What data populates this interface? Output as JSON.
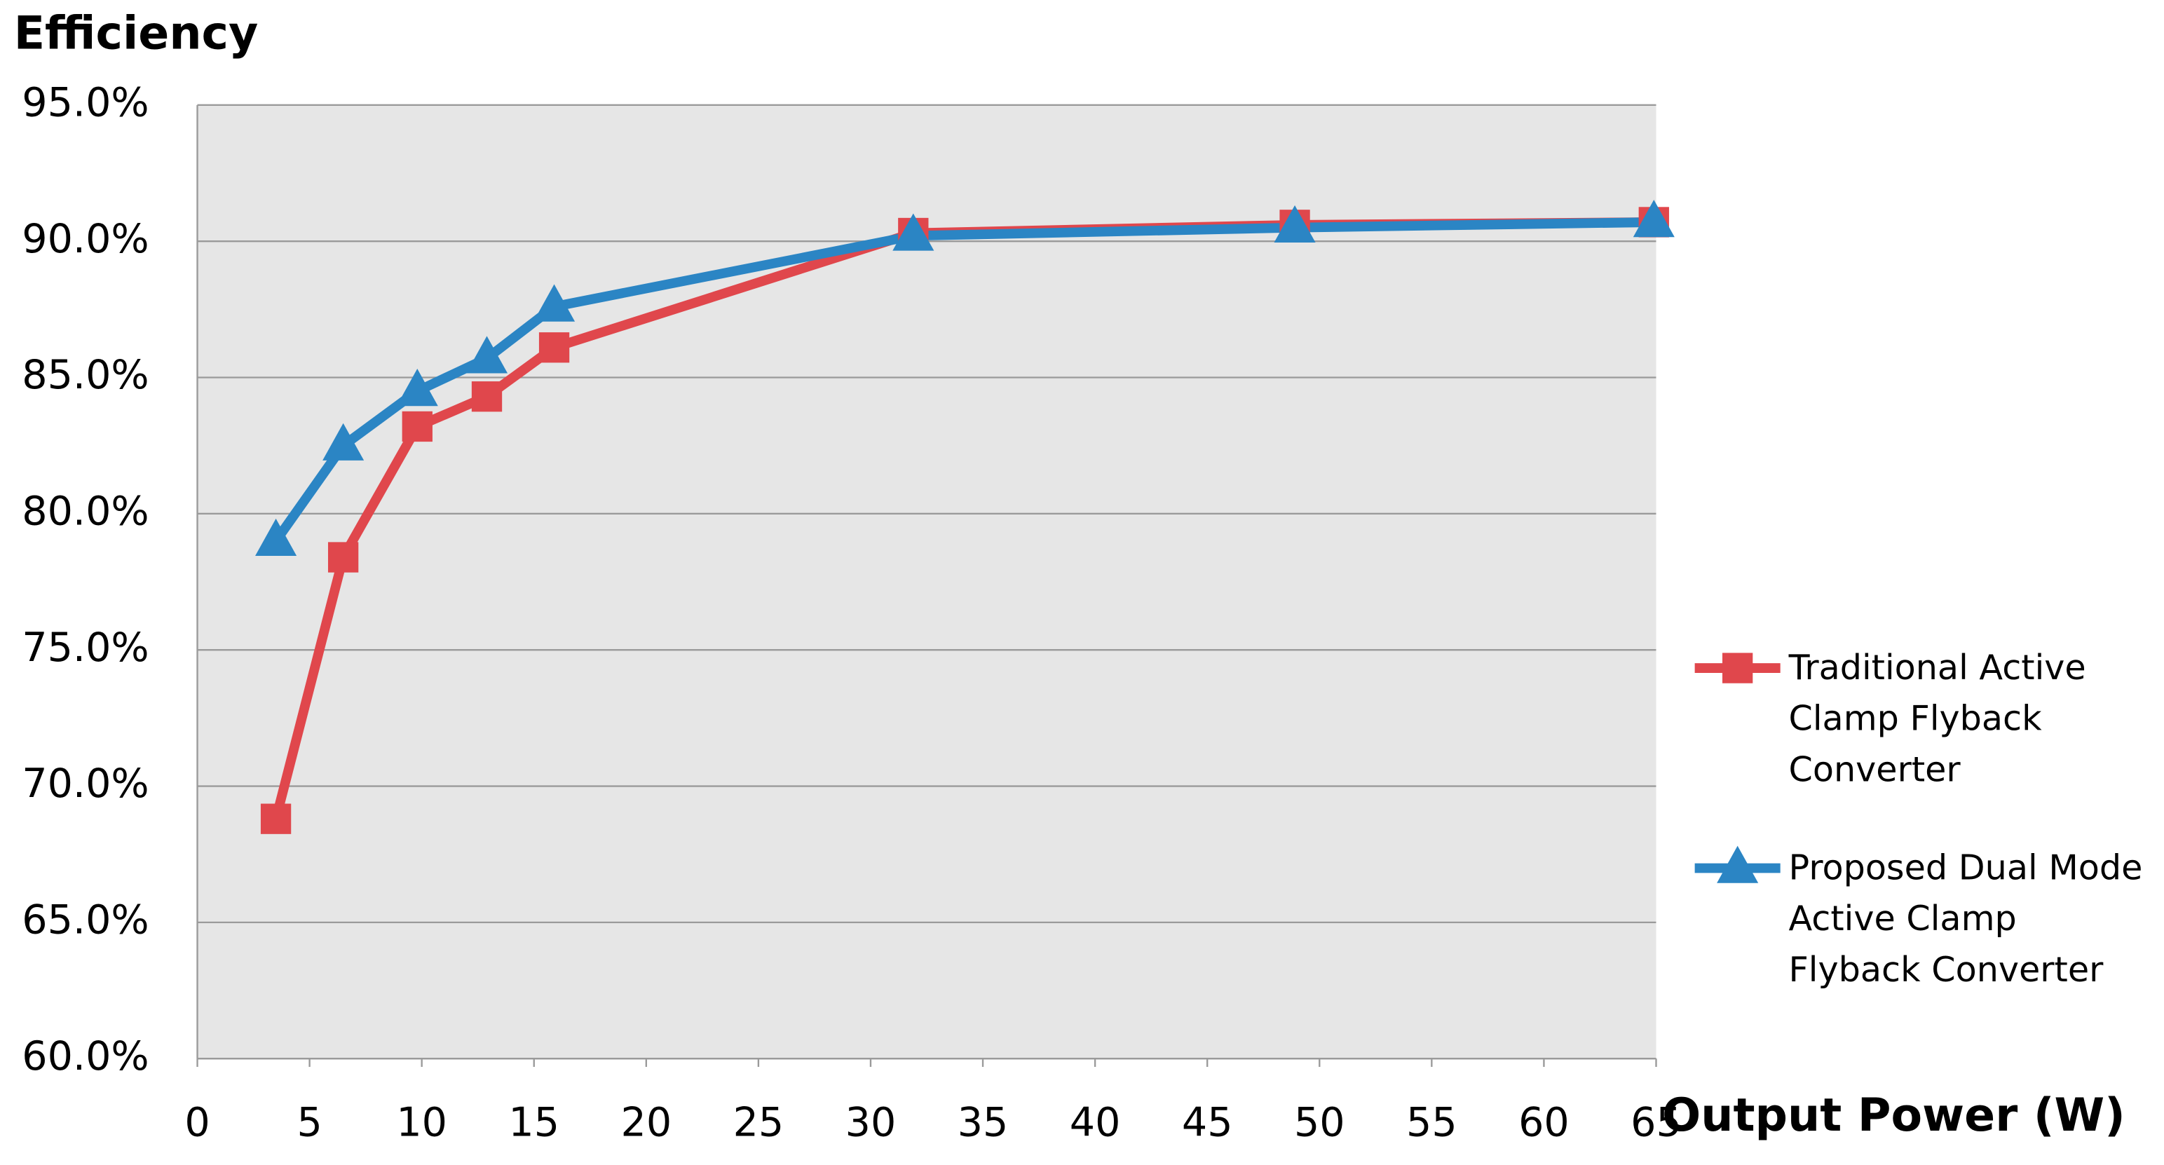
{
  "chart_data": {
    "type": "line",
    "title": "Efficiency",
    "x_label": "Output Power (W)",
    "x": [
      3.5,
      6.5,
      9.8,
      12.9,
      15.9,
      31.9,
      48.9,
      64.9
    ],
    "series": [
      {
        "name": "Traditional Active Clamp Flyback Converter",
        "color": "#e0474c",
        "marker": "square",
        "values": [
          68.8,
          78.4,
          83.2,
          84.3,
          86.1,
          90.3,
          90.6,
          90.7
        ]
      },
      {
        "name": "Proposed Dual Mode Active Clamp Flyback Converter",
        "color": "#2b85c4",
        "marker": "triangle",
        "values": [
          79.0,
          82.5,
          84.5,
          85.7,
          87.6,
          90.2,
          90.5,
          90.7
        ]
      }
    ],
    "xlim": [
      0,
      65
    ],
    "xticks": [
      0,
      5,
      10,
      15,
      20,
      25,
      30,
      35,
      40,
      45,
      50,
      55,
      60,
      65
    ],
    "ylim": [
      60,
      95
    ],
    "yticks": [
      {
        "value": 60,
        "label": "60.0%"
      },
      {
        "value": 65,
        "label": "65.0%"
      },
      {
        "value": 70,
        "label": "70.0%"
      },
      {
        "value": 75,
        "label": "75.0%"
      },
      {
        "value": 80,
        "label": "80.0%"
      },
      {
        "value": 85,
        "label": "85.0%"
      },
      {
        "value": 90,
        "label": "90.0%"
      },
      {
        "value": 95,
        "label": "95.0%"
      }
    ],
    "grid": true,
    "legend": "right"
  }
}
